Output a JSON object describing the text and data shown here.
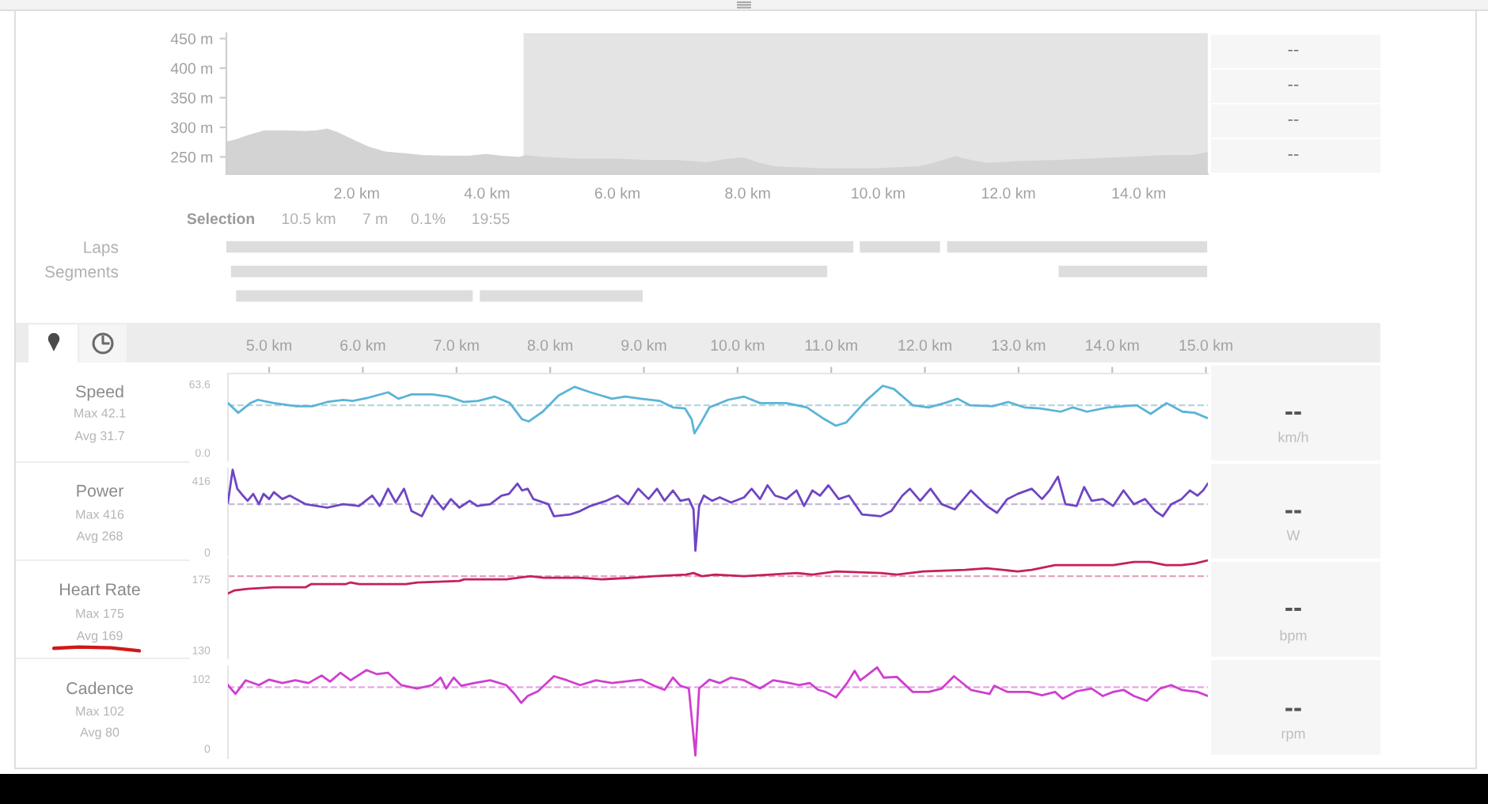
{
  "chart_data": [
    {
      "type": "area",
      "x": [
        0,
        0.13,
        0.33,
        0.58,
        0.9,
        1.22,
        1.38,
        1.55,
        1.71,
        1.95,
        2.19,
        2.44,
        2.76,
        3.01,
        3.41,
        3.73,
        3.98,
        4.22,
        4.5,
        4.58,
        4.86,
        5.43,
        6.0,
        6.4,
        6.89,
        7.37,
        7.7,
        7.94,
        8.18,
        8.43,
        9.15,
        9.96,
        10.61,
        10.85,
        11.18,
        11.42,
        11.67,
        12.15,
        12.8,
        13.61,
        14.42,
        14.82,
        15.06
      ],
      "series": [
        {
          "color": "#d3d3d3",
          "values": [
            276,
            279,
            287,
            295,
            295,
            294,
            295,
            298,
            292,
            279,
            267,
            259,
            256,
            253,
            252,
            252,
            255,
            252,
            250,
            253,
            250,
            247,
            247,
            245,
            245,
            241,
            247,
            249,
            240,
            234,
            231,
            231,
            234,
            240,
            251,
            245,
            240,
            243,
            245,
            249,
            253,
            253,
            258
          ]
        }
      ],
      "xlim": [
        0,
        15.06
      ],
      "xticks": [
        {
          "value": 2,
          "label": "2.0 km"
        },
        {
          "value": 4,
          "label": "4.0 km"
        },
        {
          "value": 6,
          "label": "6.0 km"
        },
        {
          "value": 8,
          "label": "8.0 km"
        },
        {
          "value": 10,
          "label": "10.0 km"
        },
        {
          "value": 12,
          "label": "12.0 km"
        },
        {
          "value": 14,
          "label": "14.0 km"
        }
      ],
      "ylim": [
        221,
        459
      ],
      "yticks": [
        {
          "value": 250,
          "label": "250 m"
        },
        {
          "value": 300,
          "label": "300 m"
        },
        {
          "value": 350,
          "label": "350 m"
        },
        {
          "value": 400,
          "label": "400 m"
        },
        {
          "value": 450,
          "label": "450 m"
        }
      ],
      "bands": [
        {
          "axis": "x",
          "from": 4.56,
          "to": 15.06,
          "color": "#e4e4e4"
        }
      ],
      "annotations": [
        "Selection",
        "10.5 km",
        "7 m",
        "0.1%",
        "19:55",
        "--",
        "--",
        "--",
        "--"
      ]
    },
    {
      "type": "bar",
      "orientation": "horizontal",
      "categories": [
        "Laps",
        "Segments",
        null
      ],
      "series": [
        {
          "color": "#dddddd",
          "base": [
            0,
            0.07,
            0.15
          ],
          "values": [
            9.62,
            9.15,
            3.63
          ]
        },
        {
          "color": "#dddddd",
          "base": [
            9.72,
            12.77,
            3.89
          ],
          "values": [
            1.23,
            2.28,
            2.5
          ]
        },
        {
          "color": "#dddddd",
          "base": [
            11.06,
            null,
            null
          ],
          "values": [
            3.99,
            null,
            null
          ]
        }
      ],
      "xlim": [
        0,
        15.06
      ],
      "tick_labels": "y"
    },
    {
      "type": "line",
      "title": "Speed",
      "x": [
        4.56,
        4.67,
        4.8,
        4.88,
        5.05,
        5.29,
        5.46,
        5.62,
        5.79,
        5.89,
        6.06,
        6.27,
        6.38,
        6.52,
        6.74,
        6.91,
        7.08,
        7.23,
        7.41,
        7.57,
        7.7,
        7.77,
        7.92,
        8.09,
        8.26,
        8.43,
        8.66,
        8.8,
        8.97,
        9.17,
        9.31,
        9.44,
        9.51,
        9.54,
        9.61,
        9.7,
        9.9,
        10.07,
        10.24,
        10.52,
        10.74,
        10.91,
        11.05,
        11.16,
        11.37,
        11.55,
        11.67,
        11.87,
        12.04,
        12.21,
        12.35,
        12.48,
        12.72,
        12.89,
        13.06,
        13.23,
        13.45,
        13.58,
        13.73,
        13.95,
        14.12,
        14.26,
        14.41,
        14.58,
        14.75,
        14.88,
        15.02
      ],
      "series": [
        {
          "color": "#5ab4d6",
          "values": [
            46,
            37,
            46,
            49,
            46,
            43,
            43,
            47,
            49,
            48,
            51,
            56,
            50,
            54,
            54,
            52,
            47,
            48,
            52,
            46,
            31,
            29,
            38,
            53,
            61,
            56,
            50,
            52,
            50,
            48,
            42,
            41,
            31,
            18,
            28,
            42,
            49,
            52,
            46,
            46,
            42,
            32,
            25,
            28,
            48,
            62,
            59,
            44,
            42,
            46,
            50,
            44,
            43,
            47,
            42,
            41,
            38,
            42,
            38,
            42,
            43,
            44,
            36,
            46,
            38,
            37,
            32
          ]
        }
      ],
      "xlim": [
        4.56,
        15.02
      ],
      "xticks": [
        {
          "value": 5,
          "label": "5.0 km"
        },
        {
          "value": 6,
          "label": "6.0 km"
        },
        {
          "value": 7,
          "label": "7.0 km"
        },
        {
          "value": 8,
          "label": "8.0 km"
        },
        {
          "value": 9,
          "label": "9.0 km"
        },
        {
          "value": 10,
          "label": "10.0 km"
        },
        {
          "value": 11,
          "label": "11.0 km"
        },
        {
          "value": 12,
          "label": "12.0 km"
        },
        {
          "value": 13,
          "label": "13.0 km"
        },
        {
          "value": 14,
          "label": "14.0 km"
        },
        {
          "value": 15,
          "label": "15.0 km"
        }
      ],
      "ylim": [
        -7.3,
        73.4
      ],
      "yticks": [
        {
          "value": 0,
          "label": "0.0"
        },
        63.6
      ],
      "ref_lines": [
        {
          "axis": "y",
          "value": 44,
          "color": "#b5d6e0",
          "line_style": "dashed"
        }
      ],
      "annotations": [
        "Max 42.1",
        "Avg 31.7",
        "--",
        "km/h"
      ]
    },
    {
      "type": "line",
      "title": "Power",
      "x": [
        4.56,
        4.61,
        4.66,
        4.72,
        4.77,
        4.83,
        4.89,
        4.94,
        5.0,
        5.05,
        5.14,
        5.22,
        5.39,
        5.62,
        5.79,
        5.96,
        6.1,
        6.18,
        6.27,
        6.35,
        6.44,
        6.52,
        6.63,
        6.74,
        6.86,
        6.94,
        7.03,
        7.14,
        7.22,
        7.36,
        7.48,
        7.56,
        7.65,
        7.7,
        7.76,
        7.82,
        7.98,
        8.04,
        8.21,
        8.32,
        8.43,
        8.6,
        8.72,
        8.83,
        8.94,
        9.05,
        9.14,
        9.22,
        9.31,
        9.39,
        9.48,
        9.53,
        9.55,
        9.59,
        9.64,
        9.73,
        9.81,
        9.93,
        10.07,
        10.15,
        10.24,
        10.32,
        10.4,
        10.52,
        10.63,
        10.71,
        10.8,
        10.88,
        10.97,
        11.08,
        11.19,
        11.33,
        11.53,
        11.64,
        11.76,
        11.84,
        11.95,
        12.06,
        12.18,
        12.32,
        12.49,
        12.66,
        12.77,
        12.88,
        12.99,
        13.14,
        13.25,
        13.33,
        13.42,
        13.5,
        13.62,
        13.7,
        13.78,
        13.9,
        14.01,
        14.12,
        14.23,
        14.35,
        14.46,
        14.54,
        14.63,
        14.74,
        14.83,
        14.91,
        14.97,
        15.02
      ],
      "series": [
        {
          "color": "#6f45c4",
          "values": [
            290,
            480,
            370,
            330,
            300,
            340,
            280,
            340,
            310,
            350,
            310,
            330,
            280,
            260,
            280,
            270,
            330,
            270,
            370,
            290,
            370,
            240,
            210,
            330,
            250,
            310,
            260,
            300,
            270,
            280,
            330,
            340,
            400,
            360,
            370,
            310,
            280,
            210,
            220,
            240,
            270,
            300,
            330,
            280,
            370,
            310,
            370,
            300,
            360,
            300,
            310,
            250,
            10,
            270,
            330,
            300,
            320,
            290,
            320,
            370,
            310,
            390,
            330,
            310,
            360,
            270,
            360,
            330,
            390,
            310,
            330,
            220,
            210,
            240,
            330,
            370,
            300,
            370,
            280,
            250,
            360,
            270,
            230,
            310,
            340,
            370,
            310,
            360,
            440,
            280,
            270,
            380,
            300,
            310,
            270,
            360,
            280,
            310,
            240,
            210,
            280,
            310,
            360,
            330,
            360,
            400
          ]
        }
      ],
      "xlim": [
        4.56,
        15.02
      ],
      "ylim": [
        -18.4,
        487.8
      ],
      "yticks": [
        0,
        416
      ],
      "tick_labels": "y",
      "ref_lines": [
        {
          "axis": "y",
          "value": 280,
          "color": "#c4bcd6",
          "line_style": "dashed"
        }
      ],
      "annotations": [
        "Max 416",
        "Avg 268",
        "--",
        "W"
      ]
    },
    {
      "type": "line",
      "title": "Heart Rate",
      "x": [
        4.56,
        4.63,
        4.77,
        5.05,
        5.39,
        5.45,
        5.82,
        5.87,
        5.96,
        6.46,
        6.58,
        7.03,
        7.08,
        7.53,
        7.79,
        7.93,
        8.32,
        8.55,
        8.88,
        9.11,
        9.45,
        9.53,
        9.62,
        9.76,
        10.07,
        10.35,
        10.63,
        10.8,
        11.05,
        11.53,
        11.7,
        11.98,
        12.43,
        12.66,
        12.99,
        13.14,
        13.39,
        13.48,
        14.01,
        14.23,
        14.4,
        14.57,
        14.74,
        14.88,
        15.02
      ],
      "series": [
        {
          "color": "#c41f5e",
          "values": [
            166,
            168,
            169,
            170,
            170,
            172,
            172,
            173,
            172,
            172,
            173,
            174,
            175,
            175,
            177,
            176,
            176,
            175,
            176,
            177,
            178,
            179,
            177,
            178,
            177,
            178,
            179,
            178,
            180,
            179,
            178,
            180,
            181,
            182,
            180,
            181,
            184,
            184,
            184,
            186,
            186,
            184,
            184,
            185,
            187
          ]
        }
      ],
      "xlim": [
        4.56,
        15.02
      ],
      "ylim": [
        124.8,
        188.1
      ],
      "yticks": [
        130,
        175
      ],
      "tick_labels": "y",
      "ref_lines": [
        {
          "axis": "y",
          "value": 177,
          "color": "#e6a3bd",
          "line_style": "dashed"
        }
      ],
      "annotations": [
        "Max 175",
        "Avg 169",
        "--",
        "bpm"
      ]
    },
    {
      "type": "line",
      "title": "Cadence",
      "x": [
        4.56,
        4.64,
        4.75,
        4.89,
        5.0,
        5.14,
        5.28,
        5.42,
        5.56,
        5.65,
        5.76,
        5.87,
        6.04,
        6.15,
        6.27,
        6.41,
        6.58,
        6.74,
        6.83,
        6.89,
        6.97,
        7.05,
        7.19,
        7.36,
        7.53,
        7.62,
        7.69,
        7.76,
        7.87,
        8.04,
        8.18,
        8.32,
        8.49,
        8.66,
        8.97,
        9.11,
        9.22,
        9.31,
        9.39,
        9.48,
        9.55,
        9.59,
        9.7,
        9.81,
        9.93,
        10.07,
        10.24,
        10.38,
        10.52,
        10.66,
        10.77,
        10.86,
        10.94,
        11.05,
        11.17,
        11.25,
        11.31,
        11.36,
        11.49,
        11.56,
        11.7,
        11.87,
        12.04,
        12.18,
        12.31,
        12.49,
        12.69,
        12.74,
        12.88,
        13.11,
        13.25,
        13.39,
        13.47,
        13.62,
        13.78,
        13.9,
        14.01,
        14.12,
        14.23,
        14.37,
        14.51,
        14.63,
        14.74,
        14.91,
        15.02
      ],
      "series": [
        {
          "color": "#cf3fcf",
          "values": [
            93,
            80,
            100,
            93,
            101,
            96,
            100,
            96,
            107,
            98,
            111,
            100,
            115,
            109,
            111,
            93,
            88,
            93,
            104,
            88,
            104,
            92,
            96,
            100,
            93,
            80,
            67,
            77,
            84,
            106,
            100,
            93,
            100,
            96,
            101,
            92,
            86,
            104,
            92,
            88,
            -10,
            88,
            101,
            96,
            104,
            100,
            88,
            100,
            97,
            93,
            96,
            86,
            83,
            75,
            96,
            114,
            100,
            105,
            119,
            104,
            105,
            83,
            83,
            88,
            106,
            86,
            80,
            92,
            83,
            83,
            78,
            83,
            73,
            84,
            88,
            77,
            83,
            86,
            77,
            70,
            88,
            93,
            86,
            83,
            77
          ]
        }
      ],
      "xlim": [
        4.56,
        15.02
      ],
      "ylim": [
        -13.9,
        120.5
      ],
      "yticks": [
        0,
        102
      ],
      "tick_labels": "y",
      "ref_lines": [
        {
          "axis": "y",
          "value": 90,
          "color": "#e3a6e3",
          "line_style": "dashed"
        }
      ],
      "annotations": [
        "Max 102",
        "Avg 80",
        "--",
        "rpm"
      ]
    }
  ]
}
